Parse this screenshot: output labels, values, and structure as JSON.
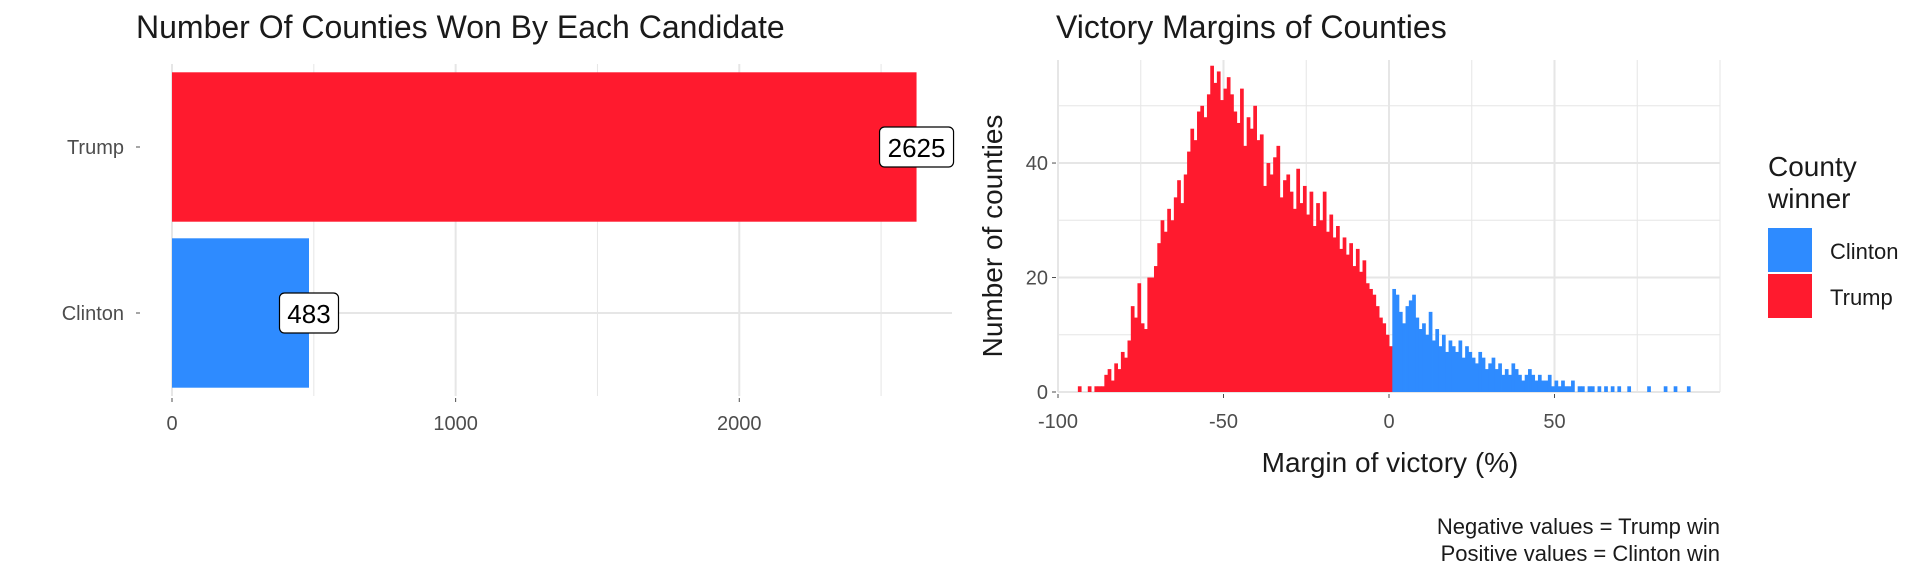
{
  "colors": {
    "clinton": "#2E8BFF",
    "trump": "#FF1A2E",
    "grid": "#E6E6E6",
    "text": "#4D4D4D",
    "title": "#1A1A1A"
  },
  "chart_data": [
    {
      "type": "bar",
      "orientation": "horizontal",
      "title": "Number Of Counties Won By Each Candidate",
      "xlabel": "",
      "ylabel": "",
      "categories": [
        "Trump",
        "Clinton"
      ],
      "values": [
        2625,
        483
      ],
      "data_labels": [
        "2625",
        "483"
      ],
      "xlim": [
        0,
        2750
      ],
      "xticks": [
        0,
        1000,
        2000
      ],
      "xtick_labels": [
        "0",
        "1000",
        "2000"
      ],
      "grid": true
    },
    {
      "type": "bar",
      "subtype": "histogram",
      "title": "Victory Margins of Counties",
      "xlabel": "Margin of victory (%)",
      "ylabel": "Number of counties",
      "xlim": [
        -100,
        100
      ],
      "ylim": [
        0,
        58
      ],
      "xticks": [
        -100,
        -50,
        0,
        50
      ],
      "xtick_labels": [
        "-100",
        "-50",
        "0",
        "50"
      ],
      "yticks": [
        0,
        20,
        40
      ],
      "ytick_labels": [
        "0",
        "20",
        "40"
      ],
      "bin_width": 1,
      "legend": {
        "title": "County winner",
        "position": "right",
        "entries": [
          "Clinton",
          "Trump"
        ]
      },
      "caption": [
        "Negative values = Trump win",
        "Positive values = Clinton win"
      ],
      "series": [
        {
          "name": "Trump",
          "bin_start": -94,
          "counts": [
            1,
            0,
            0,
            1,
            0,
            1,
            1,
            1,
            3,
            4,
            2,
            5,
            4,
            7,
            6,
            9,
            15,
            13,
            19,
            12,
            11,
            20,
            20,
            22,
            26,
            30,
            28,
            32,
            30,
            34,
            37,
            33,
            38,
            42,
            46,
            44,
            49,
            50,
            48,
            52,
            57,
            54,
            56,
            51,
            53,
            55,
            52,
            49,
            47,
            53,
            43,
            48,
            46,
            50,
            44,
            45,
            36,
            40,
            38,
            41,
            43,
            34,
            37,
            38,
            35,
            32,
            39,
            33,
            36,
            31,
            35,
            29,
            33,
            30,
            35,
            28,
            31,
            27,
            29,
            25,
            27,
            24,
            26,
            22,
            25,
            21,
            23,
            19,
            18,
            17,
            15,
            13,
            12,
            10,
            8,
            5
          ]
        },
        {
          "name": "Clinton",
          "bin_start": 1,
          "counts": [
            18,
            17,
            14,
            12,
            15,
            16,
            17,
            13,
            11,
            12,
            10,
            14,
            9,
            11,
            8,
            10,
            7,
            9,
            8,
            7,
            9,
            6,
            8,
            7,
            6,
            5,
            7,
            6,
            4,
            5,
            6,
            4,
            5,
            3,
            4,
            3,
            5,
            4,
            3,
            2,
            3,
            4,
            3,
            2,
            3,
            2,
            2,
            3,
            1,
            2,
            1,
            2,
            1,
            1,
            2,
            0,
            1,
            1,
            0,
            1,
            1,
            0,
            1,
            0,
            1,
            0,
            1,
            0,
            1,
            0,
            0,
            1,
            0,
            0,
            0,
            0,
            0,
            1,
            0,
            0,
            0,
            0,
            1,
            0,
            0,
            1,
            0,
            0,
            0,
            1
          ]
        }
      ]
    }
  ]
}
